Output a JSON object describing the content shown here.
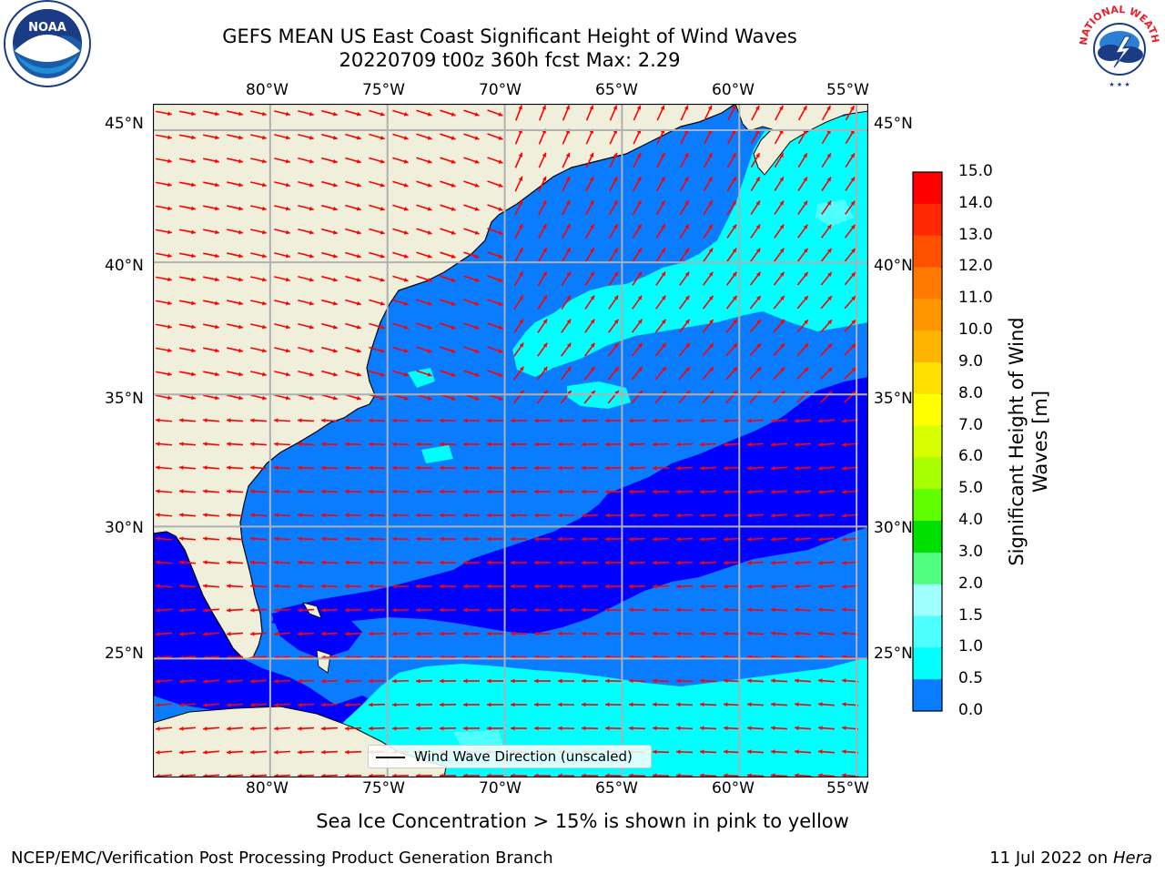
{
  "header": {
    "title_line1": "GEFS MEAN US East Coast Significant Height of Wind Waves",
    "title_line2": "20220709 t00z 360h fcst   Max: 2.29"
  },
  "logos": {
    "left": "NOAA",
    "right": "NATIONAL WEATHER SERVICE"
  },
  "map": {
    "lon_labels": [
      "80°W",
      "75°W",
      "70°W",
      "65°W",
      "60°W",
      "55°W"
    ],
    "lat_labels": [
      "45°N",
      "40°N",
      "35°N",
      "30°N",
      "25°N"
    ],
    "extent": {
      "lon_min": -85,
      "lon_max": -54.5,
      "lat_min": 20.5,
      "lat_max": 46
    },
    "colors": {
      "land": "#efefdc",
      "ocean_0_05": "#0000ff",
      "ocean_05_1": "#0a7cff",
      "ocean_1_15": "#00ffff",
      "ocean_15_2": "#4dffff",
      "arrow": "#ff0000",
      "grid": "#b0b0b0"
    }
  },
  "legend": {
    "label": "Wind Wave Direction (unscaled)"
  },
  "colorbar": {
    "label": "Significant Height of Wind Waves [m]",
    "label_line1": "Significant Height of Wind",
    "label_line2": "Waves [m]",
    "ticks": [
      "15.0",
      "14.0",
      "13.0",
      "12.0",
      "11.0",
      "10.0",
      "9.0",
      "8.0",
      "7.0",
      "6.0",
      "5.0",
      "4.0",
      "3.0",
      "2.0",
      "1.5",
      "1.0",
      "0.5",
      "0.0"
    ],
    "colors": [
      "#ff0000",
      "#ff2000",
      "#ff5000",
      "#ff7800",
      "#ff9600",
      "#ffb400",
      "#ffd800",
      "#ffff00",
      "#e0ff00",
      "#c0ff00",
      "#80ff00",
      "#40ff00",
      "#00e000",
      "#50ff80",
      "#a0ffff",
      "#4dffff",
      "#00ffff",
      "#0a7cff",
      "#0000ff"
    ]
  },
  "footer": {
    "note": "Sea Ice Concentration > 15% is shown in pink to yellow",
    "left": "NCEP/EMC/Verification Post Processing Product Generation Branch",
    "right_date": "11 Jul 2022 on",
    "right_host": "Hera"
  }
}
